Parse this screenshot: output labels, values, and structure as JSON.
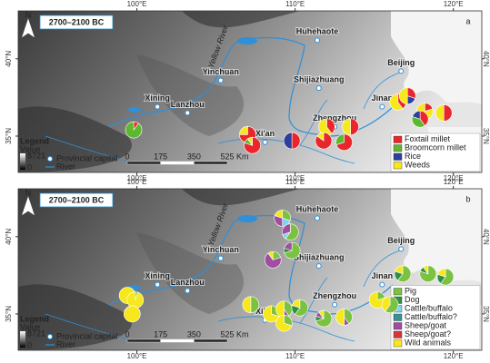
{
  "panels": [
    {
      "label": "a",
      "title": "2700–2100 BC",
      "north": "N",
      "river_label": "Yellow River",
      "xlim": [
        92.5,
        121.8
      ],
      "ylim": [
        32.65,
        43.1
      ],
      "xticks": [
        {
          "value": 100,
          "label": "100°E"
        },
        {
          "value": 110,
          "label": "110°E"
        },
        {
          "value": 120,
          "label": "120°E"
        }
      ],
      "yticks": [
        {
          "value": 35,
          "label": "35°N"
        },
        {
          "value": 40,
          "label": "40°N"
        }
      ],
      "cities": [
        {
          "name": "Huhehaote",
          "lon": 111.4,
          "lat": 41.2
        },
        {
          "name": "Yinchuan",
          "lon": 105.3,
          "lat": 38.6
        },
        {
          "name": "Shijiazhuang",
          "lon": 111.5,
          "lat": 38.1
        },
        {
          "name": "Beijing",
          "lon": 116.7,
          "lat": 39.2
        },
        {
          "name": "Xining",
          "lon": 101.3,
          "lat": 36.9
        },
        {
          "name": "Lanzhou",
          "lon": 103.2,
          "lat": 36.5
        },
        {
          "name": "Jinan",
          "lon": 115.5,
          "lat": 36.9
        },
        {
          "name": "Zhengzhou",
          "lon": 112.5,
          "lat": 35.6
        },
        {
          "name": "Xi'an",
          "lon": 108.1,
          "lat": 34.6
        }
      ],
      "legend": {
        "title": "Legend",
        "value": "Value",
        "max": 8721,
        "min": 0,
        "capital": "Provincial capital",
        "river": "River",
        "scale": [
          0,
          175,
          350,
          525
        ],
        "unit": "Km"
      },
      "categories": [
        {
          "name": "Foxtail millet",
          "color": "#e8262b"
        },
        {
          "name": "Broomcorn millet",
          "color": "#5cb82e"
        },
        {
          "name": "Rice",
          "color": "#2d3f9c"
        },
        {
          "name": "Weeds",
          "color": "#f7e81d"
        }
      ],
      "sites": [
        {
          "lon": 99.8,
          "lat": 35.4,
          "values": [
            10,
            90,
            0,
            0
          ]
        },
        {
          "lon": 107.0,
          "lat": 35.1,
          "values": [
            75,
            0,
            0,
            25
          ]
        },
        {
          "lon": 107.3,
          "lat": 34.4,
          "values": [
            80,
            10,
            0,
            10
          ]
        },
        {
          "lon": 109.8,
          "lat": 34.7,
          "values": [
            50,
            0,
            50,
            0
          ]
        },
        {
          "lon": 112.0,
          "lat": 35.6,
          "values": [
            40,
            0,
            0,
            60
          ]
        },
        {
          "lon": 111.8,
          "lat": 34.7,
          "values": [
            85,
            0,
            0,
            15
          ]
        },
        {
          "lon": 113.1,
          "lat": 34.6,
          "values": [
            70,
            30,
            0,
            0
          ]
        },
        {
          "lon": 113.5,
          "lat": 35.6,
          "values": [
            50,
            0,
            0,
            50
          ]
        },
        {
          "lon": 116.5,
          "lat": 37.2,
          "values": [
            40,
            0,
            0,
            60
          ]
        },
        {
          "lon": 117.1,
          "lat": 37.6,
          "values": [
            30,
            0,
            20,
            50
          ]
        },
        {
          "lon": 118.2,
          "lat": 36.6,
          "values": [
            20,
            0,
            0,
            80
          ]
        },
        {
          "lon": 117.9,
          "lat": 36.1,
          "values": [
            40,
            40,
            20,
            0
          ]
        },
        {
          "lon": 119.4,
          "lat": 36.5,
          "values": [
            50,
            0,
            0,
            50
          ]
        }
      ]
    },
    {
      "label": "b",
      "title": "2700–2100 BC",
      "north": "N",
      "river_label": "Yellow River",
      "xlim": [
        92.5,
        121.8
      ],
      "ylim": [
        32.65,
        43.1
      ],
      "xticks": [
        {
          "value": 100,
          "label": "100°E"
        },
        {
          "value": 110,
          "label": "110°E"
        },
        {
          "value": 120,
          "label": "120°E"
        }
      ],
      "yticks": [
        {
          "value": 35,
          "label": "35°N"
        },
        {
          "value": 40,
          "label": "40°N"
        }
      ],
      "cities": [
        {
          "name": "Huhehaote",
          "lon": 111.4,
          "lat": 41.2
        },
        {
          "name": "Yinchuan",
          "lon": 105.3,
          "lat": 38.6
        },
        {
          "name": "Shijiazhuang",
          "lon": 111.5,
          "lat": 38.1
        },
        {
          "name": "Beijing",
          "lon": 116.7,
          "lat": 39.2
        },
        {
          "name": "Xining",
          "lon": 101.3,
          "lat": 36.9
        },
        {
          "name": "Lanzhou",
          "lon": 103.2,
          "lat": 36.5
        },
        {
          "name": "Jinan",
          "lon": 115.5,
          "lat": 36.9
        },
        {
          "name": "Zhengzhou",
          "lon": 112.5,
          "lat": 35.6
        },
        {
          "name": "Xi'an",
          "lon": 108.1,
          "lat": 34.6
        }
      ],
      "legend": {
        "title": "Legend",
        "value": "Value",
        "max": 8721,
        "min": 0,
        "capital": "Provincial capital",
        "river": "River",
        "scale": [
          0,
          175,
          350,
          525
        ],
        "unit": "Km"
      },
      "categories": [
        {
          "name": "Pig",
          "color": "#7cc242"
        },
        {
          "name": "Dog",
          "color": "#2f8f45"
        },
        {
          "name": "Cattle/buffalo",
          "color": "#7fd3f0"
        },
        {
          "name": "Cattle/buffalo?",
          "color": "#3a8f96"
        },
        {
          "name": "Sheep/goat",
          "color": "#a04ea0"
        },
        {
          "name": "Sheep/goat?",
          "color": "#d9343a"
        },
        {
          "name": "Wild animals",
          "color": "#f7e81d"
        }
      ],
      "sites": [
        {
          "lon": 99.4,
          "lat": 36.2,
          "values": [
            0,
            0,
            0,
            0,
            0,
            0,
            100
          ]
        },
        {
          "lon": 99.9,
          "lat": 35.9,
          "values": [
            5,
            0,
            0,
            0,
            0,
            0,
            95
          ]
        },
        {
          "lon": 99.7,
          "lat": 35.0,
          "values": [
            0,
            0,
            0,
            0,
            0,
            0,
            100
          ]
        },
        {
          "lon": 109.2,
          "lat": 41.2,
          "values": [
            30,
            0,
            20,
            0,
            30,
            0,
            20
          ]
        },
        {
          "lon": 109.7,
          "lat": 40.3,
          "values": [
            60,
            0,
            10,
            0,
            30,
            0,
            0
          ]
        },
        {
          "lon": 108.6,
          "lat": 38.5,
          "values": [
            20,
            0,
            0,
            0,
            70,
            0,
            10
          ]
        },
        {
          "lon": 109.8,
          "lat": 39.1,
          "values": [
            70,
            10,
            0,
            0,
            20,
            0,
            0
          ]
        },
        {
          "lon": 107.2,
          "lat": 35.6,
          "values": [
            50,
            0,
            0,
            0,
            0,
            0,
            50
          ]
        },
        {
          "lon": 108.5,
          "lat": 35.0,
          "values": [
            30,
            0,
            0,
            0,
            0,
            0,
            70
          ]
        },
        {
          "lon": 109.3,
          "lat": 35.3,
          "values": [
            40,
            0,
            0,
            0,
            10,
            0,
            50
          ]
        },
        {
          "lon": 109.3,
          "lat": 34.4,
          "values": [
            30,
            0,
            0,
            0,
            0,
            0,
            70
          ]
        },
        {
          "lon": 110.3,
          "lat": 35.4,
          "values": [
            60,
            20,
            0,
            0,
            0,
            0,
            20
          ]
        },
        {
          "lon": 111.8,
          "lat": 34.7,
          "values": [
            70,
            10,
            0,
            0,
            10,
            0,
            10
          ]
        },
        {
          "lon": 113.1,
          "lat": 34.8,
          "values": [
            40,
            0,
            0,
            0,
            10,
            0,
            50
          ]
        },
        {
          "lon": 115.2,
          "lat": 35.9,
          "values": [
            20,
            0,
            0,
            0,
            0,
            0,
            80
          ]
        },
        {
          "lon": 116.0,
          "lat": 35.6,
          "values": [
            60,
            0,
            0,
            0,
            0,
            0,
            40
          ]
        },
        {
          "lon": 116.8,
          "lat": 37.6,
          "values": [
            60,
            20,
            0,
            0,
            0,
            0,
            20
          ]
        },
        {
          "lon": 118.4,
          "lat": 37.6,
          "values": [
            80,
            10,
            0,
            0,
            0,
            0,
            10
          ]
        },
        {
          "lon": 119.5,
          "lat": 37.4,
          "values": [
            60,
            20,
            0,
            0,
            0,
            0,
            20
          ]
        }
      ]
    }
  ]
}
